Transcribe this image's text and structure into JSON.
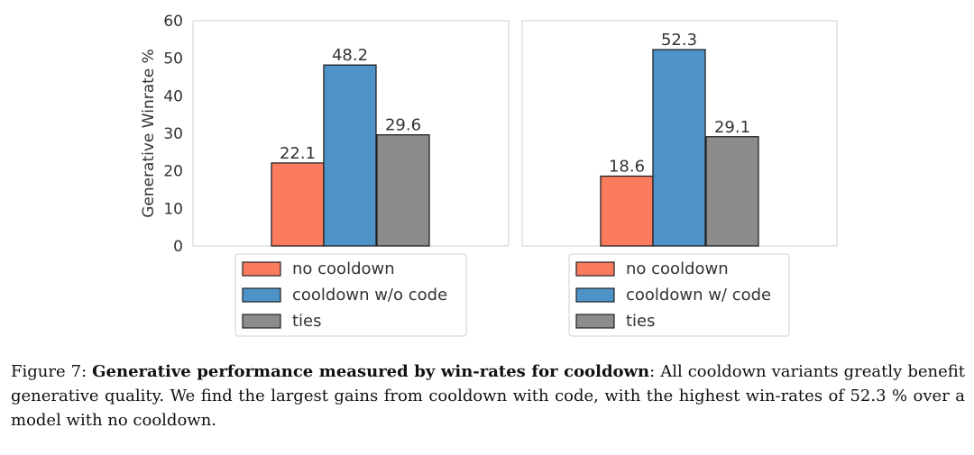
{
  "caption": {
    "prefix": "Figure 7:",
    "bold": "Generative performance measured by win-rates for cooldown",
    "rest": ": All cooldown variants greatly benefit generative quality. We find the largest gains from cooldown with code, with the highest win-rates of 52.3 % over a model with no cooldown."
  },
  "colors": {
    "no_cooldown": "#fa7b5e",
    "cooldown": "#4d93c8",
    "ties": "#8c8c8c"
  },
  "chart_data": [
    {
      "type": "bar",
      "ylabel": "Generative Winrate %",
      "ylim": [
        0,
        60
      ],
      "yticks": [
        "0",
        "10",
        "20",
        "30",
        "40",
        "50",
        "60"
      ],
      "grid": false,
      "legend_position": "below",
      "series": [
        {
          "name": "no cooldown",
          "values": [
            22.1
          ],
          "color": "#fa7b5e",
          "label": "22.1"
        },
        {
          "name": "cooldown w/o code",
          "values": [
            48.2
          ],
          "color": "#4d93c8",
          "label": "48.2"
        },
        {
          "name": "ties",
          "values": [
            29.6
          ],
          "color": "#8c8c8c",
          "label": "29.6"
        }
      ]
    },
    {
      "type": "bar",
      "ylabel": "",
      "ylim": [
        0,
        60
      ],
      "grid": false,
      "legend_position": "below",
      "series": [
        {
          "name": "no cooldown",
          "values": [
            18.6
          ],
          "color": "#fa7b5e",
          "label": "18.6"
        },
        {
          "name": "cooldown w/ code",
          "values": [
            52.3
          ],
          "color": "#4d93c8",
          "label": "52.3"
        },
        {
          "name": "ties",
          "values": [
            29.1
          ],
          "color": "#8c8c8c",
          "label": "29.1"
        }
      ]
    }
  ]
}
